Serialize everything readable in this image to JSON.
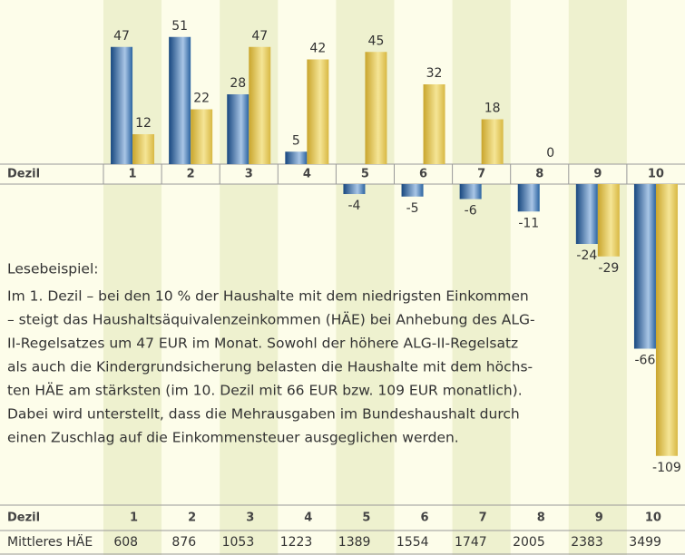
{
  "chart_data": {
    "type": "bar",
    "row_label": "Dezil",
    "categories": [
      "1",
      "2",
      "3",
      "4",
      "5",
      "6",
      "7",
      "8",
      "9",
      "10"
    ],
    "series": [
      {
        "color": "#1f5a96",
        "values": [
          47,
          51,
          28,
          5,
          -4,
          -5,
          -6,
          -11,
          -24,
          -66
        ]
      },
      {
        "color": "#d4b23c",
        "values": [
          12,
          22,
          47,
          42,
          45,
          32,
          18,
          0,
          -29,
          -109
        ]
      }
    ]
  },
  "text": {
    "heading": "Lesebeispiel:",
    "lines": [
      "Im 1. Dezil – bei den 10 % der Haushalte mit dem niedrigsten Einkommen",
      "– steigt das Haushaltsäquivalenzeinkommen (HÄE) bei Anhebung des ALG-",
      "II-Regelsatzes um 47 EUR im Monat. Sowohl der höhere ALG-II-Regelsatz",
      "als auch die Kindergrundsicherung belasten die Haushalte mit dem höchs-",
      "ten HÄE am stärksten (im 10. Dezil mit 66 EUR bzw. 109 EUR monatlich).",
      "Dabei wird unterstellt, dass die Mehrausgaben im Bundeshaushalt durch",
      "einen Zuschlag auf die Einkommensteuer ausgeglichen werden."
    ]
  },
  "table": {
    "rows": [
      [
        "Dezil",
        "1",
        "2",
        "3",
        "4",
        "5",
        "6",
        "7",
        "8",
        "9",
        "10"
      ],
      [
        "Mittleres HÄE",
        608,
        876,
        1053,
        1223,
        1389,
        1554,
        1747,
        2005,
        2383,
        3499
      ]
    ]
  }
}
